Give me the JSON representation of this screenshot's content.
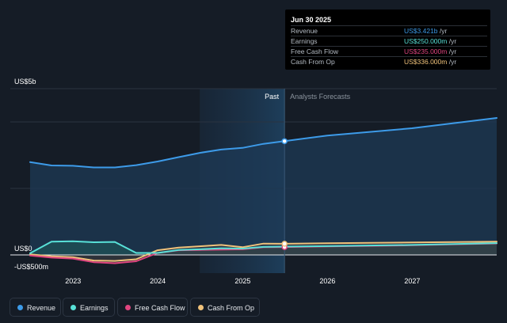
{
  "chart_data": {
    "type": "area",
    "y_axis": {
      "top_label": "US$5b",
      "zero_label": "US$0",
      "neg_label": "-US$500m",
      "ylim": [
        -500,
        5000
      ]
    },
    "x_axis": {
      "ticks": [
        "2023",
        "2024",
        "2025",
        "2026",
        "2027"
      ],
      "range": [
        "2022-06-30",
        "2027-12-31"
      ]
    },
    "divider": {
      "date": "2025-06-30",
      "past_label": "Past",
      "forecast_label": "Analysts Forecasts"
    },
    "highlight_start": "2024-06-30",
    "series": [
      {
        "name": "Revenue",
        "color": "#3d9be9",
        "points": [
          [
            "2022-06-30",
            2790
          ],
          [
            "2022-09-30",
            2690
          ],
          [
            "2022-12-31",
            2680
          ],
          [
            "2023-03-31",
            2630
          ],
          [
            "2023-06-30",
            2630
          ],
          [
            "2023-09-30",
            2700
          ],
          [
            "2023-12-31",
            2810
          ],
          [
            "2024-03-31",
            2940
          ],
          [
            "2024-06-30",
            3070
          ],
          [
            "2024-09-30",
            3170
          ],
          [
            "2024-12-31",
            3220
          ],
          [
            "2025-03-31",
            3340
          ],
          [
            "2025-06-30",
            3421
          ],
          [
            "2025-12-31",
            3590
          ],
          [
            "2026-12-31",
            3810
          ],
          [
            "2027-12-31",
            4120
          ]
        ]
      },
      {
        "name": "Earnings",
        "color": "#58e1d8",
        "points": [
          [
            "2022-06-30",
            50
          ],
          [
            "2022-09-30",
            400
          ],
          [
            "2022-12-31",
            410
          ],
          [
            "2023-03-31",
            380
          ],
          [
            "2023-06-30",
            390
          ],
          [
            "2023-09-30",
            60
          ],
          [
            "2023-12-31",
            60
          ],
          [
            "2024-03-31",
            150
          ],
          [
            "2024-06-30",
            170
          ],
          [
            "2024-09-30",
            200
          ],
          [
            "2024-12-31",
            190
          ],
          [
            "2025-03-31",
            240
          ],
          [
            "2025-06-30",
            250
          ],
          [
            "2025-12-31",
            265
          ],
          [
            "2026-12-31",
            300
          ],
          [
            "2027-12-31",
            355
          ]
        ]
      },
      {
        "name": "Free Cash Flow",
        "color": "#e0457f",
        "points": [
          [
            "2022-06-30",
            -20
          ],
          [
            "2022-09-30",
            -80
          ],
          [
            "2022-12-31",
            -110
          ],
          [
            "2023-03-31",
            -220
          ],
          [
            "2023-06-30",
            -250
          ],
          [
            "2023-09-30",
            -190
          ],
          [
            "2023-12-31",
            60
          ],
          [
            "2024-03-31",
            140
          ],
          [
            "2024-06-30",
            150
          ],
          [
            "2024-09-30",
            160
          ],
          [
            "2024-12-31",
            170
          ],
          [
            "2025-03-31",
            230
          ],
          [
            "2025-06-30",
            235
          ],
          [
            "2025-12-31",
            255
          ],
          [
            "2026-12-31",
            290
          ],
          [
            "2027-12-31",
            345
          ]
        ]
      },
      {
        "name": "Cash From Op",
        "color": "#f0c27b",
        "points": [
          [
            "2022-06-30",
            20
          ],
          [
            "2022-09-30",
            -40
          ],
          [
            "2022-12-31",
            -70
          ],
          [
            "2023-03-31",
            -170
          ],
          [
            "2023-06-30",
            -180
          ],
          [
            "2023-09-30",
            -130
          ],
          [
            "2023-12-31",
            140
          ],
          [
            "2024-03-31",
            220
          ],
          [
            "2024-06-30",
            260
          ],
          [
            "2024-09-30",
            300
          ],
          [
            "2024-12-31",
            230
          ],
          [
            "2025-03-31",
            340
          ],
          [
            "2025-06-30",
            336
          ],
          [
            "2025-12-31",
            350
          ],
          [
            "2026-12-31",
            375
          ],
          [
            "2027-12-31",
            400
          ]
        ]
      }
    ]
  },
  "tooltip": {
    "date": "Jun 30 2025",
    "rows": [
      {
        "label": "Revenue",
        "value": "US$3.421b",
        "unit": "/yr",
        "color": "#3d9be9"
      },
      {
        "label": "Earnings",
        "value": "US$250.000m",
        "unit": "/yr",
        "color": "#58e1d8"
      },
      {
        "label": "Free Cash Flow",
        "value": "US$235.000m",
        "unit": "/yr",
        "color": "#e0457f"
      },
      {
        "label": "Cash From Op",
        "value": "US$336.000m",
        "unit": "/yr",
        "color": "#f0c27b"
      }
    ]
  },
  "legend": [
    {
      "label": "Revenue",
      "color": "#3d9be9"
    },
    {
      "label": "Earnings",
      "color": "#58e1d8"
    },
    {
      "label": "Free Cash Flow",
      "color": "#e0457f"
    },
    {
      "label": "Cash From Op",
      "color": "#f0c27b"
    }
  ]
}
